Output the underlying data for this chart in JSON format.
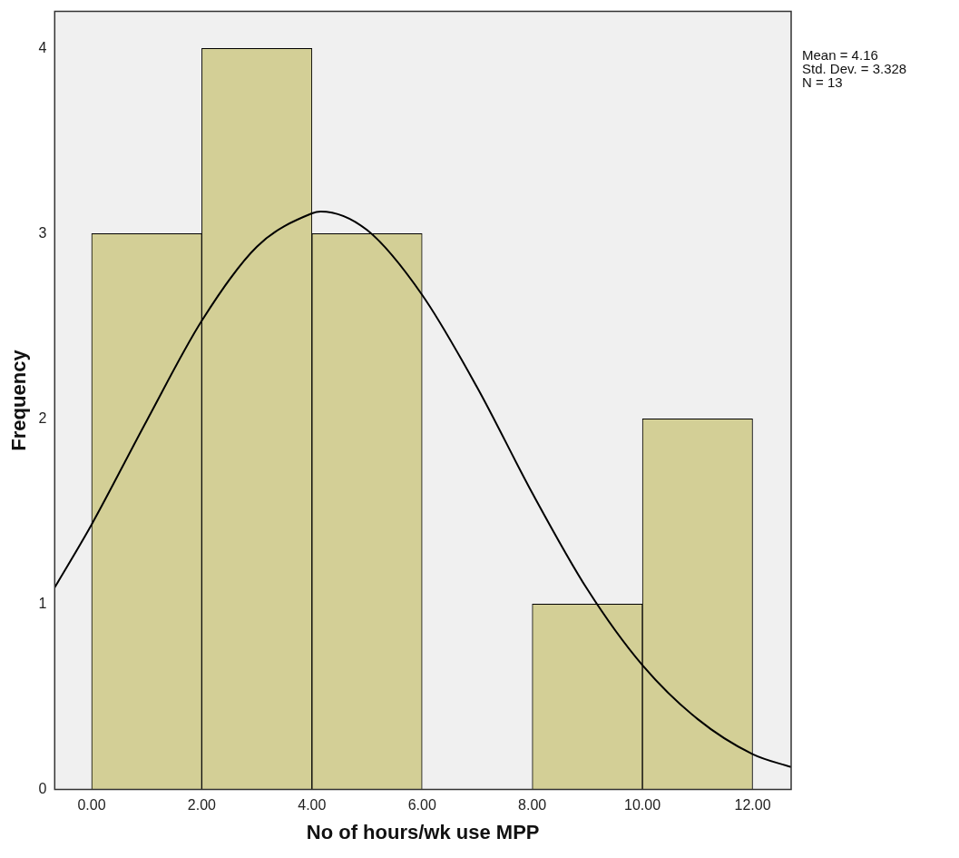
{
  "chart_data": {
    "type": "histogram",
    "xlabel": "No of hours/wk use MPP",
    "ylabel": "Frequency",
    "bins": [
      0,
      2,
      4,
      6,
      8,
      10,
      12
    ],
    "values": [
      3,
      4,
      3,
      0,
      1,
      2
    ],
    "color": "#d3cf96",
    "series": [
      {
        "type": "line",
        "color": "#000000",
        "x": [
          -0.67,
          0,
          1,
          2,
          3,
          4,
          4.16,
          5,
          6,
          7,
          8,
          9,
          10,
          11,
          12,
          12.7
        ],
        "values": [
          1.09,
          1.43,
          1.99,
          2.53,
          2.93,
          3.11,
          3.12,
          3.02,
          2.67,
          2.17,
          1.6,
          1.08,
          0.67,
          0.38,
          0.19,
          0.12
        ]
      }
    ],
    "xlim": [
      -0.67,
      12.7
    ],
    "ylim": [
      0,
      4.2
    ],
    "xticks": [
      {
        "value": 0,
        "label": "0.00"
      },
      {
        "value": 2,
        "label": "2.00"
      },
      {
        "value": 4,
        "label": "4.00"
      },
      {
        "value": 6,
        "label": "6.00"
      },
      {
        "value": 8,
        "label": "8.00"
      },
      {
        "value": 10,
        "label": "10.00"
      },
      {
        "value": 12,
        "label": "12.00"
      }
    ],
    "yticks": [
      0,
      1,
      2,
      3,
      4
    ],
    "grid": false,
    "legend": false,
    "annotations": [
      "Mean = 4.16",
      "Std. Dev. = 3.328",
      "N = 13"
    ]
  }
}
